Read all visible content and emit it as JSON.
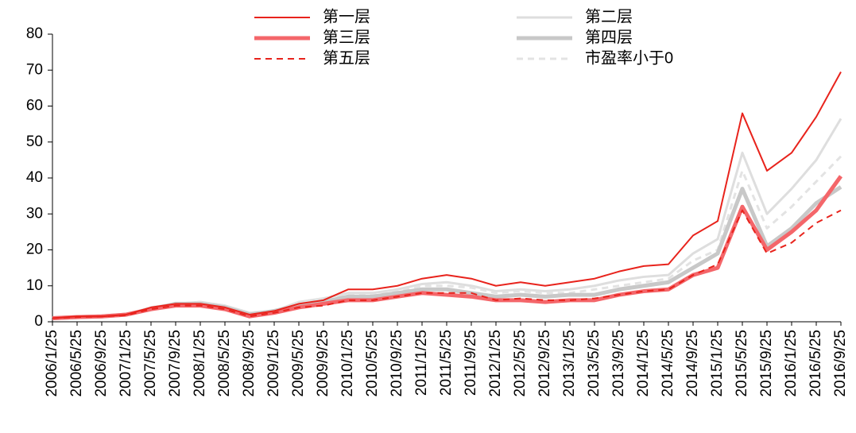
{
  "chart_data": {
    "type": "line",
    "categories": [
      "2006/1/25",
      "2006/5/25",
      "2006/9/25",
      "2007/1/25",
      "2007/5/25",
      "2007/9/25",
      "2008/1/25",
      "2008/5/25",
      "2008/9/25",
      "2009/1/25",
      "2009/5/25",
      "2009/9/25",
      "2010/1/25",
      "2010/5/25",
      "2010/9/25",
      "2011/1/25",
      "2011/5/25",
      "2011/9/25",
      "2012/1/25",
      "2012/5/25",
      "2012/9/25",
      "2013/1/25",
      "2013/5/25",
      "2013/9/25",
      "2014/1/25",
      "2014/5/25",
      "2014/9/25",
      "2015/1/25",
      "2015/5/25",
      "2015/9/25",
      "2016/1/25",
      "2016/5/25",
      "2016/9/25"
    ],
    "series": [
      {
        "name": "第一层",
        "color": "#e8231c",
        "width": 2,
        "dash": false,
        "values": [
          1,
          1.5,
          1.5,
          2,
          4,
          5,
          5,
          4,
          2,
          3,
          5,
          6,
          9,
          9,
          10,
          12,
          13,
          12,
          10,
          11,
          10,
          11,
          12,
          14,
          15.5,
          16,
          24,
          28,
          58,
          42,
          47,
          57,
          69.5
        ]
      },
      {
        "name": "第二层",
        "color": "#dedede",
        "width": 3,
        "dash": false,
        "values": [
          1,
          1.5,
          1.5,
          2,
          4,
          5,
          5.5,
          4.5,
          2.5,
          3,
          5.5,
          6.5,
          8,
          8,
          9,
          10.5,
          11,
          10,
          8.5,
          9,
          8.5,
          9,
          10,
          11.5,
          12.5,
          13,
          19,
          23,
          47,
          30,
          37,
          45,
          56.5
        ]
      },
      {
        "name": "第三层",
        "color": "#f4666a",
        "width": 5,
        "dash": false,
        "values": [
          1,
          1.3,
          1.5,
          2,
          3.5,
          4.5,
          4.5,
          3.5,
          1.5,
          2.5,
          4,
          5,
          6,
          6,
          7,
          8,
          7.5,
          7,
          6,
          6,
          5.5,
          6,
          6,
          7.5,
          8.5,
          9,
          13,
          15,
          32,
          20,
          25,
          31,
          40.5
        ]
      },
      {
        "name": "第四层",
        "color": "#c8c8c8",
        "width": 5,
        "dash": false,
        "values": [
          1,
          1.3,
          1.5,
          2,
          3.5,
          5,
          5,
          4,
          2,
          3,
          4.5,
          5.5,
          7,
          7,
          8,
          9,
          9,
          8,
          7,
          7.5,
          7,
          7.5,
          7.5,
          9,
          10,
          11,
          15,
          19,
          37,
          21,
          26,
          33,
          37.5
        ]
      },
      {
        "name": "第五层",
        "color": "#e8231c",
        "width": 2,
        "dash": true,
        "values": [
          1,
          1.3,
          1.5,
          1.8,
          3.5,
          4.5,
          4.5,
          3.5,
          1.5,
          2.5,
          4,
          4.5,
          6,
          6,
          7,
          8,
          8,
          8,
          6,
          6.5,
          6,
          6,
          6.5,
          7.5,
          8.5,
          9,
          13,
          16,
          31,
          19,
          22,
          27.5,
          31
        ]
      },
      {
        "name": "市盈率小于0",
        "color": "#e3e3e3",
        "width": 3,
        "dash": true,
        "values": [
          1,
          1.5,
          1.5,
          2,
          4,
          5,
          5.5,
          4.5,
          2.5,
          3,
          5.5,
          6.5,
          7.5,
          7.5,
          8.5,
          10,
          10,
          9.5,
          8,
          8.5,
          8,
          8,
          9,
          10,
          11,
          12,
          17,
          20,
          42,
          26,
          32,
          39,
          46
        ]
      }
    ],
    "ylim": [
      0,
      80
    ],
    "yticks": [
      0,
      10,
      20,
      30,
      40,
      50,
      60,
      70,
      80
    ],
    "grid": false
  }
}
